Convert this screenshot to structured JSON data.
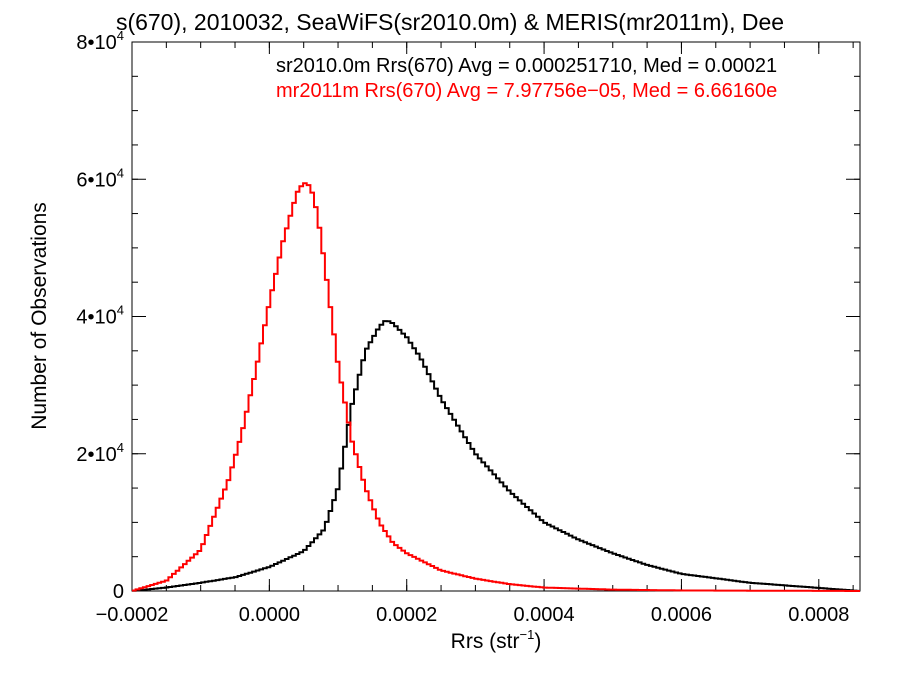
{
  "chart_data": {
    "type": "histogram-step",
    "title": "s(670), 2010032, SeaWiFS(sr2010.0m) & MERIS(mr2011m), Dee",
    "xlabel": "Rrs (str",
    "xlabel_sup": "−1",
    "xlabel_suffix": ")",
    "ylabel": "Number of Observations",
    "xlim": [
      -0.0002,
      0.00086
    ],
    "ylim": [
      0,
      80000
    ],
    "x_ticks": [
      -0.0002,
      0.0,
      0.0002,
      0.0004,
      0.0006,
      0.0008
    ],
    "x_tick_labels": [
      "−0.0002",
      "0.0000",
      "0.0002",
      "0.0004",
      "0.0006",
      "0.0008"
    ],
    "y_ticks": [
      0,
      20000,
      40000,
      60000,
      80000
    ],
    "y_tick_labels": [
      {
        "mant": "0",
        "exp": ""
      },
      {
        "mant": "2•10",
        "exp": "4"
      },
      {
        "mant": "4•10",
        "exp": "4"
      },
      {
        "mant": "6•10",
        "exp": "4"
      },
      {
        "mant": "8•10",
        "exp": "4"
      }
    ],
    "grid": false,
    "series": [
      {
        "name": "sr2010.0m",
        "stats_label": "sr2010.0m Rrs(670) Avg = 0.000251710, Med = 0.00021",
        "color": "#000000",
        "x": [
          -0.0002,
          -0.00015,
          -0.0001,
          -5e-05,
          0.0,
          5e-05,
          8e-05,
          0.0001,
          0.00012,
          0.00014,
          0.00016,
          0.00017,
          0.00018,
          0.0002,
          0.00022,
          0.00025,
          0.0003,
          0.00035,
          0.0004,
          0.00045,
          0.0005,
          0.00055,
          0.0006,
          0.0007,
          0.00086
        ],
        "y": [
          0,
          500,
          1200,
          2000,
          3500,
          5800,
          9000,
          15000,
          27000,
          35000,
          38500,
          39500,
          39000,
          37000,
          34000,
          28000,
          20000,
          14500,
          10000,
          7500,
          5500,
          3800,
          2500,
          1200,
          0
        ]
      },
      {
        "name": "mr2011m",
        "stats_label": "mr2011m Rrs(670) Avg = 7.97756e−05, Med = 6.66160e",
        "color": "#ff0000",
        "x": [
          -0.0002,
          -0.00015,
          -0.0001,
          -8e-05,
          -6e-05,
          -4e-05,
          -2e-05,
          0.0,
          2e-05,
          4e-05,
          5e-05,
          6e-05,
          7e-05,
          8e-05,
          0.0001,
          0.00012,
          0.00014,
          0.00016,
          0.00018,
          0.0002,
          0.00025,
          0.0003,
          0.00035,
          0.0004,
          0.0005,
          0.0006,
          0.00086
        ],
        "y": [
          0,
          1500,
          6000,
          11000,
          16000,
          23000,
          32000,
          42000,
          51000,
          58000,
          59500,
          59000,
          55000,
          48000,
          33000,
          22000,
          15000,
          10000,
          7000,
          5500,
          3000,
          1800,
          1000,
          500,
          200,
          80,
          0
        ]
      }
    ]
  }
}
